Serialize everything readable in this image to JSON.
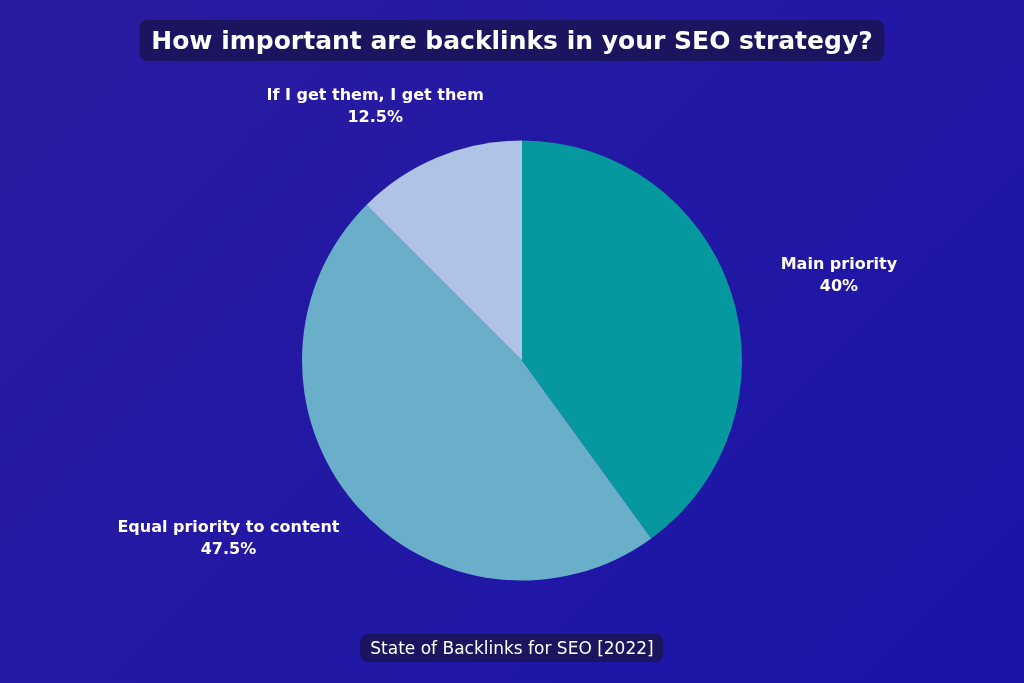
{
  "chart_data": {
    "type": "pie",
    "title": "How important are backlinks in your SEO strategy?",
    "categories": [
      "Main priority",
      "Equal priority to content",
      "If I get them, I get them"
    ],
    "values": [
      40,
      47.5,
      12.5
    ],
    "colors": [
      "#05989f",
      "#6aafc9",
      "#afc3e6"
    ],
    "value_labels": [
      "40%",
      "47.5%",
      "12.5%"
    ],
    "legend": false,
    "annotations": [
      "State of Backlinks for SEO [2022]"
    ]
  }
}
